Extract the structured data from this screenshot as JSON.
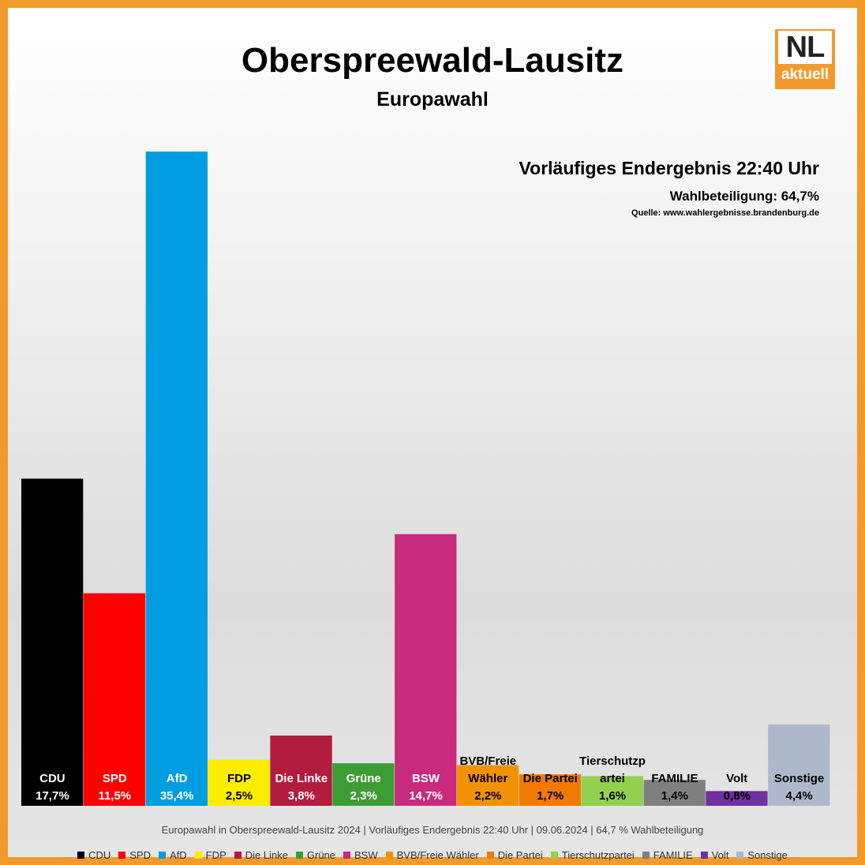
{
  "header": {
    "title": "Oberspreewald-Lausitz",
    "subtitle": "Europawahl",
    "info_result": "Vorläufiges Endergebnis 22:40 Uhr",
    "info_turnout": "Wahlbeteiligung:  64,7%",
    "info_source": "Quelle: www.wahlergebnisse.brandenburg.de"
  },
  "logo": {
    "top": "NL",
    "bottom": "aktuell",
    "color": "#F39A2D"
  },
  "footer": "Europawahl in Oberspreewald-Lausitz 2024 | Vorläufiges Endergebnis 22:40 Uhr | 09.06.2024 | 64,7 % Wahlbeteiligung",
  "chart_data": {
    "type": "bar",
    "unit": "%",
    "ylim": [
      0,
      35.4
    ],
    "grid": false,
    "legend_position": "bottom",
    "categories": [
      "CDU",
      "SPD",
      "AfD",
      "FDP",
      "Die Linke",
      "Grüne",
      "BSW",
      "BVB/Freie Wähler",
      "Die Partei",
      "Tierschutzpartei",
      "FAMILIE",
      "Volt",
      "Sonstige"
    ],
    "values": [
      17.7,
      11.5,
      35.4,
      2.5,
      3.8,
      2.3,
      14.7,
      2.2,
      1.7,
      1.6,
      1.4,
      0.8,
      4.4
    ],
    "bar_labels": [
      [
        "CDU"
      ],
      [
        "SPD"
      ],
      [
        "AfD"
      ],
      [
        "FDP"
      ],
      [
        "Die Linke"
      ],
      [
        "Grüne"
      ],
      [
        "BSW"
      ],
      [
        "BVB/Freie",
        "Wähler"
      ],
      [
        "Die Partei"
      ],
      [
        "Tierschutzp",
        "artei"
      ],
      [
        "FAMILIE"
      ],
      [
        "Volt"
      ],
      [
        "Sonstige"
      ]
    ],
    "value_labels": [
      "17,7%",
      "11,5%",
      "35,4%",
      "2,5%",
      "3,8%",
      "2,3%",
      "14,7%",
      "2,2%",
      "1,7%",
      "1,6%",
      "1,4%",
      "0,8%",
      "4,4%"
    ],
    "colors": [
      "#000000",
      "#FF0000",
      "#009EE0",
      "#FFED00",
      "#B21C3E",
      "#3E9C35",
      "#C82B7C",
      "#F39200",
      "#F37A00",
      "#92D050",
      "#7F7F7F",
      "#7030A0",
      "#ADB9CA"
    ],
    "label_colors": [
      "#FFFFFF",
      "#FFFFFF",
      "#FFFFFF",
      "#000000",
      "#FFFFFF",
      "#FFFFFF",
      "#FFFFFF",
      "#000000",
      "#000000",
      "#000000",
      "#000000",
      "#000000",
      "#000000"
    ],
    "legend": [
      "CDU",
      "SPD",
      "AfD",
      "FDP",
      "Die Linke",
      "Grüne",
      "BSW",
      "BVB/Freie Wähler",
      "Die Partei",
      "Tierschutzpartei",
      "FAMILIE",
      "Volt",
      "Sonstige"
    ]
  }
}
